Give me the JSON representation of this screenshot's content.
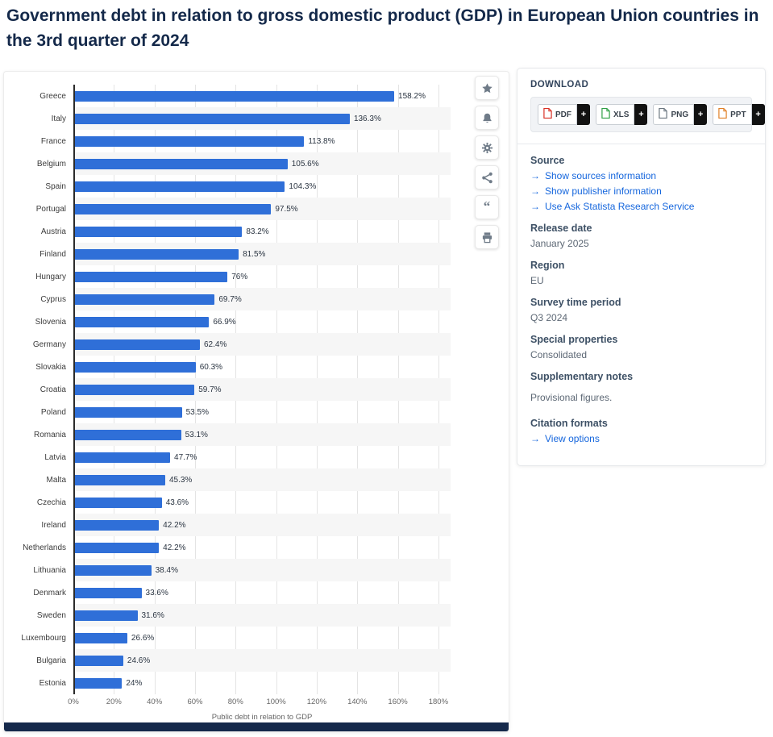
{
  "page_title": "Government debt in relation to gross domestic product (GDP) in European Union countries in the 3rd quarter of 2024",
  "chart_data": {
    "type": "bar",
    "orientation": "horizontal",
    "title": "Government debt in relation to gross domestic product (GDP) in European Union countries in the 3rd quarter of 2024",
    "categories": [
      "Greece",
      "Italy",
      "France",
      "Belgium",
      "Spain",
      "Portugal",
      "Austria",
      "Finland",
      "Hungary",
      "Cyprus",
      "Slovenia",
      "Germany",
      "Slovakia",
      "Croatia",
      "Poland",
      "Romania",
      "Latvia",
      "Malta",
      "Czechia",
      "Ireland",
      "Netherlands",
      "Lithuania",
      "Denmark",
      "Sweden",
      "Luxembourg",
      "Bulgaria",
      "Estonia"
    ],
    "values": [
      158.2,
      136.3,
      113.8,
      105.6,
      104.3,
      97.5,
      83.2,
      81.5,
      76,
      69.7,
      66.9,
      62.4,
      60.3,
      59.7,
      53.5,
      53.1,
      47.7,
      45.3,
      43.6,
      42.2,
      42.2,
      38.4,
      33.6,
      31.6,
      26.6,
      24.6,
      24
    ],
    "value_labels": [
      "158.2%",
      "136.3%",
      "113.8%",
      "105.6%",
      "104.3%",
      "97.5%",
      "83.2%",
      "81.5%",
      "76%",
      "69.7%",
      "66.9%",
      "62.4%",
      "60.3%",
      "59.7%",
      "53.5%",
      "53.1%",
      "47.7%",
      "45.3%",
      "43.6%",
      "42.2%",
      "42.2%",
      "38.4%",
      "33.6%",
      "31.6%",
      "26.6%",
      "24.6%",
      "24%"
    ],
    "xlabel": "Public debt in relation to GDP",
    "x_ticks": [
      "0%",
      "20%",
      "40%",
      "60%",
      "80%",
      "100%",
      "120%",
      "140%",
      "160%",
      "180%"
    ],
    "xlim": [
      0,
      186
    ],
    "grid": true,
    "legend": false,
    "bar_color": "#2f6fd8"
  },
  "colors": {
    "bar": "#2f6fd8",
    "link": "#1566dd",
    "title": "#14294a",
    "footer_bar": "#15294b"
  },
  "toolbar": {
    "buttons": [
      {
        "name": "favorite",
        "icon": "star-icon"
      },
      {
        "name": "notifications",
        "icon": "bell-icon"
      },
      {
        "name": "settings",
        "icon": "gear-icon"
      },
      {
        "name": "share",
        "icon": "share-icon"
      },
      {
        "name": "cite",
        "icon": "quote-icon"
      },
      {
        "name": "print",
        "icon": "printer-icon"
      }
    ]
  },
  "download": {
    "title": "DOWNLOAD",
    "plus_label": "+",
    "buttons": [
      {
        "label": "PDF",
        "icon_color": "#d93025"
      },
      {
        "label": "XLS",
        "icon_color": "#2e9e44"
      },
      {
        "label": "PNG",
        "icon_color": "#6b7680"
      },
      {
        "label": "PPT",
        "icon_color": "#e08027"
      }
    ]
  },
  "details": {
    "arrow": "→",
    "source_title": "Source",
    "source_links": [
      "Show sources information",
      "Show publisher information",
      "Use Ask Statista Research Service"
    ],
    "release_date_label": "Release date",
    "release_date": "January 2025",
    "region_label": "Region",
    "region": "EU",
    "survey_label": "Survey time period",
    "survey": "Q3 2024",
    "special_label": "Special properties",
    "special": "Consolidated",
    "notes_label": "Supplementary notes",
    "notes": "Provisional figures.",
    "citation_label": "Citation formats",
    "citation_link": "View options"
  }
}
